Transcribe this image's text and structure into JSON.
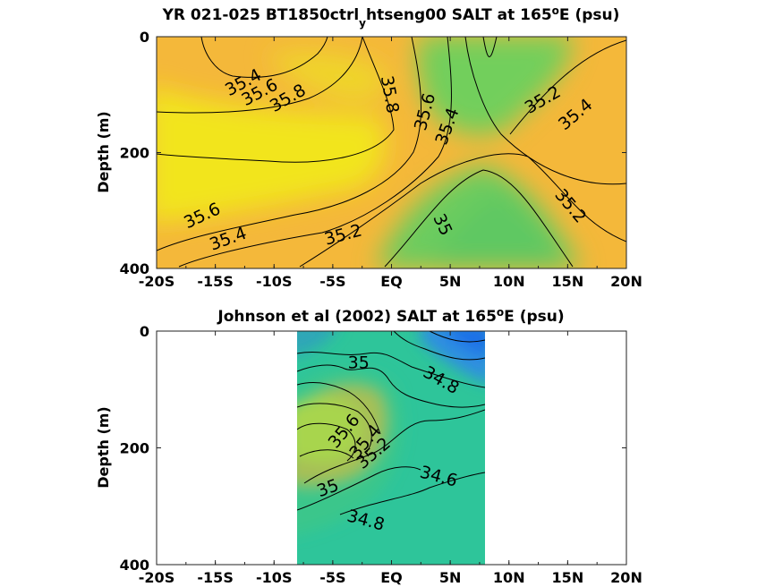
{
  "chart_data": [
    {
      "type": "heatmap",
      "title": "YR 021-025 BT1850ctrl",
      "title_sub": "y",
      "title_rest": "htseng00 SALT at 165",
      "title_sup": "o",
      "title_end": "E (psu)",
      "ylabel": "Depth (m)",
      "x_ticklabels": [
        "-20S",
        "-15S",
        "-10S",
        "-5S",
        "EQ",
        "5N",
        "10N",
        "15N",
        "20N"
      ],
      "x_ticks": [
        -20,
        -15,
        -10,
        -5,
        0,
        5,
        10,
        15,
        20
      ],
      "xlim": [
        -20,
        20
      ],
      "y_ticklabels": [
        "0",
        "200",
        "400"
      ],
      "y_ticks": [
        0,
        200,
        400
      ],
      "ylim": [
        0,
        400
      ],
      "y_reversed": true,
      "colors": {
        "high": "#f3e81f",
        "mid": "#f5b53a",
        "low": "#6ccf5c"
      },
      "contour_labels": [
        {
          "text": "35.4",
          "x": -12.6,
          "d": 80,
          "rot": -28
        },
        {
          "text": "35.6",
          "x": -11.2,
          "d": 97,
          "rot": -28
        },
        {
          "text": "35.8",
          "x": -8.8,
          "d": 107,
          "rot": -30
        },
        {
          "text": "35.8",
          "x": -0.2,
          "d": 100,
          "rot": 80
        },
        {
          "text": "35.6",
          "x": 2.9,
          "d": 130,
          "rot": -75
        },
        {
          "text": "35.4",
          "x": 4.8,
          "d": 155,
          "rot": -70
        },
        {
          "text": "35.2",
          "x": 12.9,
          "d": 110,
          "rot": -30
        },
        {
          "text": "35.4",
          "x": 15.7,
          "d": 135,
          "rot": -40
        },
        {
          "text": "35.2",
          "x": 15.2,
          "d": 293,
          "rot": 50
        },
        {
          "text": "35",
          "x": 4.3,
          "d": 325,
          "rot": 65
        },
        {
          "text": "35.6",
          "x": -16.1,
          "d": 310,
          "rot": -25
        },
        {
          "text": "35.4",
          "x": -13.9,
          "d": 350,
          "rot": -20
        },
        {
          "text": "35.2",
          "x": -4.1,
          "d": 343,
          "rot": -15
        }
      ]
    },
    {
      "type": "heatmap",
      "title": "Johnson et al (2002) SALT at 165",
      "title_sup": "o",
      "title_end": "E (psu)",
      "ylabel": "Depth (m)",
      "x_ticklabels": [
        "-20S",
        "-15S",
        "-10S",
        "-5S",
        "EQ",
        "5N",
        "10N",
        "15N",
        "20N"
      ],
      "x_ticks": [
        -20,
        -15,
        -10,
        -5,
        0,
        5,
        10,
        15,
        20
      ],
      "xlim": [
        -20,
        20
      ],
      "data_xrange": [
        -8,
        8
      ],
      "y_ticklabels": [
        "0",
        "200",
        "400"
      ],
      "y_ticks": [
        0,
        200,
        400
      ],
      "ylim": [
        0,
        400
      ],
      "y_reversed": true,
      "colors": {
        "high": "#f3e81f",
        "mid": "#f5b53a",
        "low": "#2fc49a",
        "fresh": "#2a8fe0"
      },
      "contour_labels": [
        {
          "text": "35",
          "x": -2.8,
          "d": 55,
          "rot": 0
        },
        {
          "text": "34.8",
          "x": 4.2,
          "d": 85,
          "rot": 30
        },
        {
          "text": "35.6",
          "x": -4.0,
          "d": 172,
          "rot": -50
        },
        {
          "text": "35.4",
          "x": -2.2,
          "d": 190,
          "rot": -50
        },
        {
          "text": "35.2",
          "x": -1.5,
          "d": 210,
          "rot": -40
        },
        {
          "text": "34.6",
          "x": 4.0,
          "d": 250,
          "rot": 15
        },
        {
          "text": "35",
          "x": -5.4,
          "d": 270,
          "rot": -20
        },
        {
          "text": "34.8",
          "x": -2.2,
          "d": 325,
          "rot": 15
        }
      ]
    }
  ]
}
